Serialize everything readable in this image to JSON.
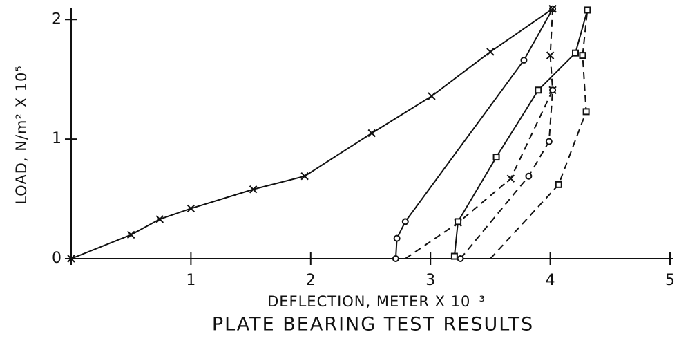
{
  "chart_data": {
    "type": "line",
    "title": "PLATE BEARING TEST RESULTS",
    "x_label": "DEFLECTION, METER X 10⁻³",
    "y_label": "LOAD, N/m² X 10⁵",
    "xlim": [
      0,
      5
    ],
    "ylim": [
      0,
      2.1
    ],
    "xticks": [
      0,
      1,
      2,
      3,
      4,
      5
    ],
    "yticks": [
      0,
      1,
      2
    ],
    "color": "#111111",
    "series": [
      {
        "marker": "x",
        "dashed": false,
        "x": [
          0,
          0.5,
          0.74,
          1.0,
          1.52,
          1.95,
          2.51,
          3.01,
          3.5,
          4.02
        ],
        "values": [
          0,
          0.2,
          0.33,
          0.42,
          0.58,
          0.69,
          1.05,
          1.36,
          1.73,
          2.09
        ]
      },
      {
        "marker": "circle",
        "dashed": false,
        "x": [
          4.02,
          3.78,
          2.79,
          2.72,
          2.71
        ],
        "values": [
          2.09,
          1.66,
          0.31,
          0.17,
          0.0
        ]
      },
      {
        "marker": "x",
        "dashed": true,
        "x": [
          2.79,
          3.23,
          3.67,
          4.02,
          4.0,
          4.02
        ],
        "values": [
          0,
          0.3,
          0.67,
          1.41,
          1.7,
          2.09
        ]
      },
      {
        "marker": "square",
        "dashed": false,
        "x": [
          3.2,
          3.23,
          3.55,
          3.9,
          4.21,
          4.31
        ],
        "values": [
          0.02,
          0.31,
          0.85,
          1.41,
          1.72,
          2.08
        ]
      },
      {
        "marker": "circle",
        "dashed": true,
        "x": [
          3.25,
          3.82,
          3.99,
          4.02
        ],
        "values": [
          0,
          0.69,
          0.98,
          1.41
        ]
      },
      {
        "marker": "square",
        "dashed": true,
        "x": [
          3.5,
          4.07,
          4.3,
          4.27,
          4.31
        ],
        "values": [
          0,
          0.62,
          1.23,
          1.7,
          2.08
        ]
      }
    ]
  }
}
